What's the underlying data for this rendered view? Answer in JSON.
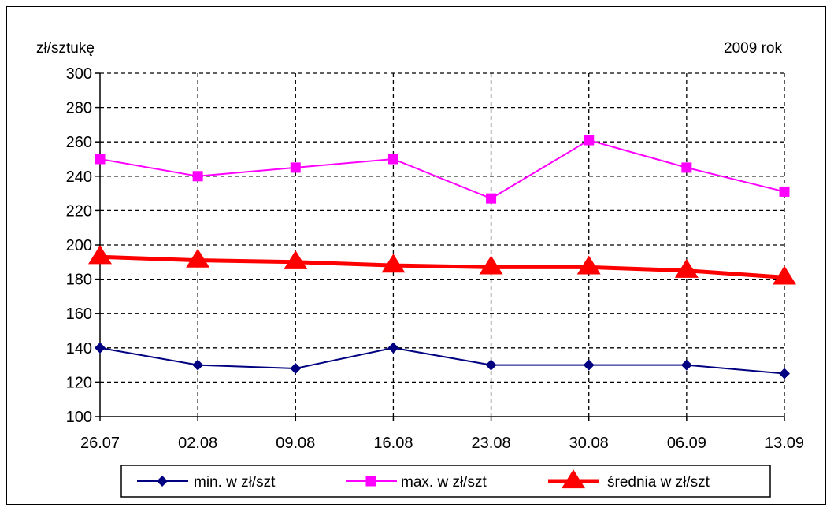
{
  "chart_data": {
    "type": "line",
    "ylabel": "zł/sztukę",
    "note": "2009 rok",
    "categories": [
      "26.07",
      "02.08",
      "09.08",
      "16.08",
      "23.08",
      "30.08",
      "06.09",
      "13.09"
    ],
    "ylim": [
      100,
      300
    ],
    "yticks": [
      100,
      120,
      140,
      160,
      180,
      200,
      220,
      240,
      260,
      280,
      300
    ],
    "grid": true,
    "legend_position": "bottom",
    "series": [
      {
        "name": "min. w  zł/szt",
        "values": [
          140,
          130,
          128,
          140,
          130,
          130,
          130,
          125
        ],
        "color": "#000080",
        "marker": "diamond"
      },
      {
        "name": "max. w  zł/szt",
        "values": [
          250,
          240,
          245,
          250,
          227,
          261,
          245,
          231
        ],
        "color": "#ff00ff",
        "marker": "square"
      },
      {
        "name": "średnia w  zł/szt",
        "values": [
          193,
          191,
          190,
          188,
          187,
          187,
          185,
          181
        ],
        "color": "#ff0000",
        "marker": "triangle"
      }
    ]
  }
}
